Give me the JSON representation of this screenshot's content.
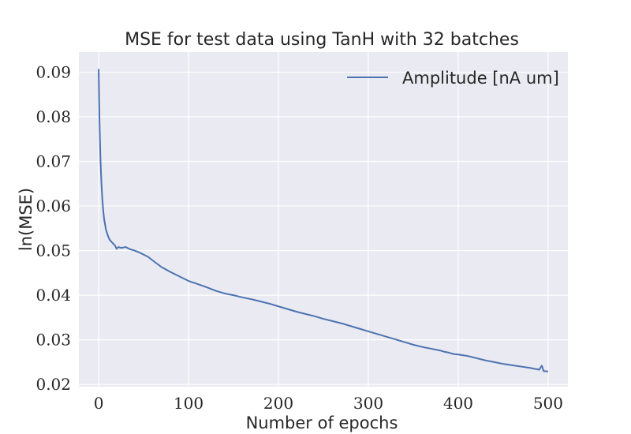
{
  "chart_data": {
    "type": "line",
    "title": "MSE for test data using TanH with 32 batches",
    "xlabel": "Number of epochs",
    "ylabel": "ln(MSE)",
    "xlim": [
      -22,
      522
    ],
    "ylim": [
      0.0195,
      0.0945
    ],
    "xticks": [
      0,
      100,
      200,
      300,
      400,
      500
    ],
    "yticks": [
      0.02,
      0.03,
      0.04,
      0.05,
      0.06,
      0.07,
      0.08,
      0.09
    ],
    "xtick_labels": [
      "0",
      "100",
      "200",
      "300",
      "400",
      "500"
    ],
    "ytick_labels": [
      "0.02",
      "0.03",
      "0.04",
      "0.05",
      "0.06",
      "0.07",
      "0.08",
      "0.09"
    ],
    "grid": true,
    "legend_position": "top-right",
    "background_color": "#eaeaf2",
    "series": [
      {
        "name": "Amplitude [nA um]",
        "color": "#4c72b0",
        "x": [
          0,
          1,
          2,
          3,
          4,
          5,
          6,
          8,
          10,
          12,
          15,
          18,
          20,
          22,
          25,
          30,
          35,
          40,
          45,
          50,
          55,
          60,
          70,
          80,
          90,
          100,
          110,
          120,
          130,
          140,
          150,
          160,
          170,
          180,
          190,
          200,
          210,
          220,
          230,
          240,
          250,
          260,
          270,
          280,
          290,
          300,
          310,
          320,
          330,
          340,
          350,
          360,
          370,
          380,
          385,
          390,
          395,
          400,
          410,
          420,
          430,
          440,
          450,
          460,
          470,
          480,
          490,
          493,
          495,
          500
        ],
        "values": [
          0.0907,
          0.0785,
          0.0705,
          0.0655,
          0.0618,
          0.0592,
          0.0572,
          0.0548,
          0.0535,
          0.0525,
          0.0518,
          0.0512,
          0.0504,
          0.0508,
          0.0506,
          0.0508,
          0.0503,
          0.05,
          0.0496,
          0.0491,
          0.0486,
          0.0478,
          0.0463,
          0.0452,
          0.0442,
          0.0432,
          0.0425,
          0.0418,
          0.041,
          0.0404,
          0.04,
          0.0395,
          0.0391,
          0.0386,
          0.0381,
          0.0375,
          0.0369,
          0.0363,
          0.0358,
          0.0353,
          0.0347,
          0.0342,
          0.0337,
          0.0331,
          0.0325,
          0.0319,
          0.0313,
          0.0307,
          0.0301,
          0.0295,
          0.0289,
          0.0284,
          0.028,
          0.0276,
          0.0273,
          0.0271,
          0.0268,
          0.0267,
          0.0264,
          0.0259,
          0.0254,
          0.025,
          0.0246,
          0.0243,
          0.024,
          0.0237,
          0.0233,
          0.0242,
          0.023,
          0.0229
        ]
      }
    ]
  }
}
